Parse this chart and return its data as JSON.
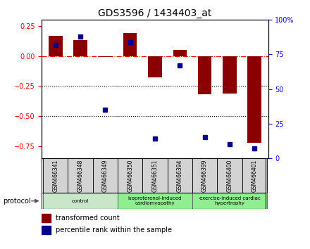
{
  "title": "GDS3596 / 1434403_at",
  "samples": [
    "GSM466341",
    "GSM466348",
    "GSM466349",
    "GSM466350",
    "GSM466351",
    "GSM466394",
    "GSM466399",
    "GSM466400",
    "GSM466401"
  ],
  "transformed_count": [
    0.17,
    0.13,
    -0.01,
    0.19,
    -0.18,
    0.05,
    -0.32,
    -0.31,
    -0.72
  ],
  "percentile_rank_pct": [
    82,
    88,
    35,
    84,
    14,
    67,
    15,
    10,
    7
  ],
  "bar_color": "#8B0000",
  "dot_color": "#00008B",
  "groups": [
    {
      "label": "control",
      "start": 0,
      "end": 3,
      "color": "#c8e6c8"
    },
    {
      "label": "isoproterenol-induced\ncardiomyopathy",
      "start": 3,
      "end": 6,
      "color": "#90ee90"
    },
    {
      "label": "exercise-induced cardiac\nhypertrophy",
      "start": 6,
      "end": 9,
      "color": "#90ee90"
    }
  ],
  "left_ylim": [
    -0.85,
    0.3
  ],
  "right_ylim": [
    0,
    100
  ],
  "left_yticks": [
    0.25,
    0.0,
    -0.25,
    -0.5,
    -0.75
  ],
  "right_yticks": [
    100,
    75,
    50,
    25,
    0
  ],
  "hlines": [
    -0.25,
    -0.5
  ],
  "bar_width": 0.55,
  "bar_color_legend": "#8B0000",
  "dot_color_legend": "#00008B"
}
